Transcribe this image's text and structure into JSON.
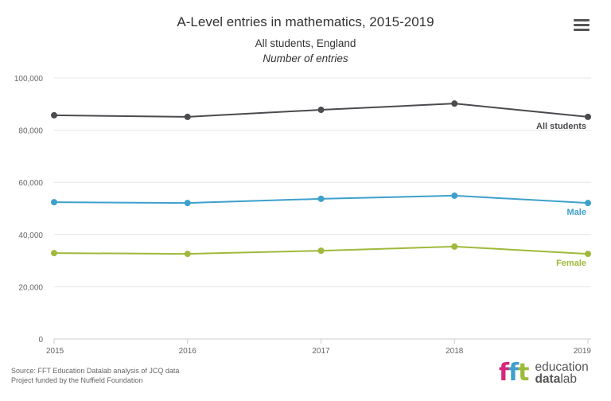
{
  "chart_data": {
    "type": "line",
    "title": "A-Level entries in mathematics, 2015-2019",
    "subtitle": "All students, England",
    "ylabel": "Number of entries",
    "xlabel": "",
    "x": [
      "2015",
      "2016",
      "2017",
      "2018",
      "2019"
    ],
    "ylim": [
      0,
      100000
    ],
    "yticks": [
      0,
      20000,
      40000,
      60000,
      80000,
      100000
    ],
    "ytick_labels": [
      "0",
      "20,000",
      "40,000",
      "60,000",
      "80,000",
      "100,000"
    ],
    "grid": true,
    "legend": "inline-end-labels",
    "series": [
      {
        "name": "All students",
        "color": "#4a4a4f",
        "values": [
          85700,
          85100,
          87800,
          90200,
          85100
        ]
      },
      {
        "name": "Male",
        "color": "#3ea0cc",
        "values": [
          52400,
          52100,
          53700,
          54900,
          52100
        ]
      },
      {
        "name": "Female",
        "color": "#9fb93b",
        "values": [
          32900,
          32600,
          33800,
          35400,
          32600
        ]
      }
    ]
  },
  "footer": {
    "source": "Source: FFT Education Datalab analysis of JCQ data",
    "funding": "Project funded by the Nuffield Foundation"
  },
  "logo": {
    "mark": "fft",
    "line1": "education",
    "line2_bold": "data",
    "line2_light": "lab",
    "colors": [
      "#d6267b",
      "#3ea0cc",
      "#9fb93b"
    ]
  },
  "menu": {
    "icon": "hamburger-menu-icon"
  }
}
